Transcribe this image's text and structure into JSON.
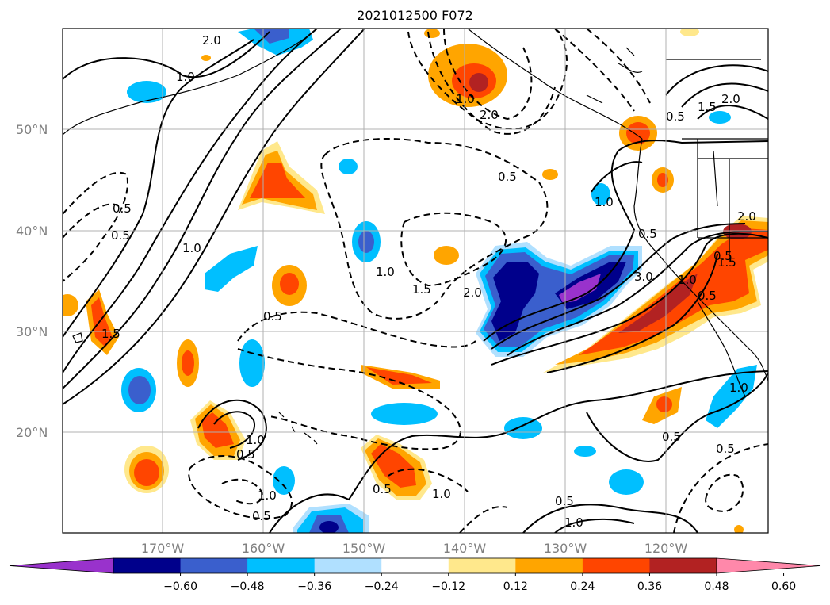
{
  "title": "2021012500 F072",
  "lat_labels": [
    "50°N",
    "40°N",
    "30°N",
    "20°N"
  ],
  "lon_labels": [
    "170°W",
    "160°W",
    "150°W",
    "140°W",
    "130°W",
    "120°W"
  ],
  "colorbar": {
    "ticks": [
      "−0.60",
      "−0.48",
      "−0.36",
      "−0.24",
      "−0.12",
      "0.12",
      "0.24",
      "0.36",
      "0.48",
      "0.60"
    ],
    "colors": [
      "#9932cc",
      "#00008b",
      "#3a5fcd",
      "#00bfff",
      "#b0e0ff",
      "#ffffff",
      "#ffe88c",
      "#ffa500",
      "#ff4500",
      "#b22222",
      "#ff88aa"
    ],
    "extend": "both"
  },
  "contour_labels": [
    "2.0",
    "1.0",
    "0.5",
    "0.5",
    "1.0",
    "1.5",
    "2.0",
    "0.5",
    "1.0",
    "1.5",
    "2.0",
    "1.0",
    "1.5",
    "2.0",
    "0.5",
    "0.5",
    "1.0",
    "3.0",
    "0.5",
    "1.0",
    "0.5",
    "0.5",
    "1.0",
    "0.5",
    "1.0",
    "0.5",
    "1.0",
    "0.5",
    "1.0",
    "0.5",
    "1.0",
    "1.5",
    "2.0",
    "0.5",
    "0.5"
  ]
}
